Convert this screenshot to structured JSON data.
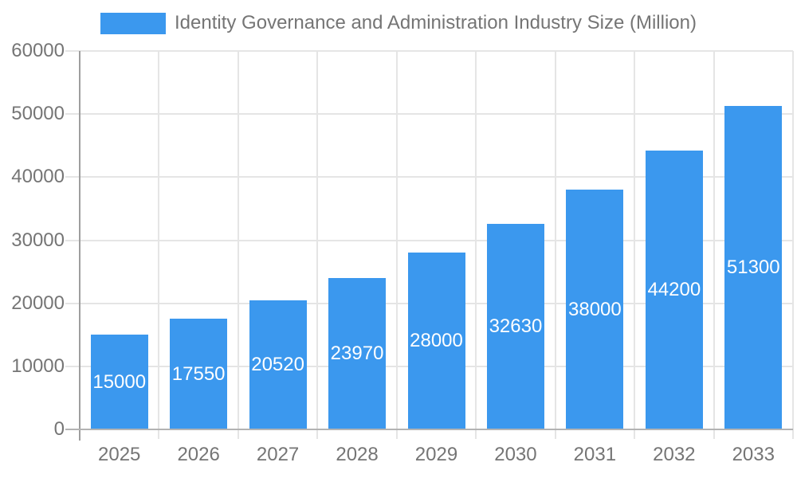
{
  "chart_data": {
    "type": "bar",
    "title": "Identity Governance and Administration Industry Size (Million)",
    "legend_position": "top",
    "categories": [
      "2025",
      "2026",
      "2027",
      "2028",
      "2029",
      "2030",
      "2031",
      "2032",
      "2033"
    ],
    "series": [
      {
        "name": "Identity Governance and Administration Industry Size (Million)",
        "values": [
          15000,
          17550,
          20520,
          23970,
          28000,
          32630,
          38000,
          44200,
          51300
        ]
      }
    ],
    "data_labels": [
      "15000",
      "17550",
      "20520",
      "23970",
      "28000",
      "32630",
      "38000",
      "44200",
      "51300"
    ],
    "xlabel": "",
    "ylabel": "",
    "ylim": [
      0,
      60000
    ],
    "y_ticks": [
      0,
      10000,
      20000,
      30000,
      40000,
      50000,
      60000
    ],
    "grid": true,
    "colors": {
      "bar": "#3b98ee",
      "bar_label": "#ffffff",
      "axis_text": "#757575",
      "grid_line": "#e5e5e5",
      "axis_line": "#9e9e9e",
      "baseline": "#b3b3b3",
      "background": "#ffffff"
    }
  }
}
